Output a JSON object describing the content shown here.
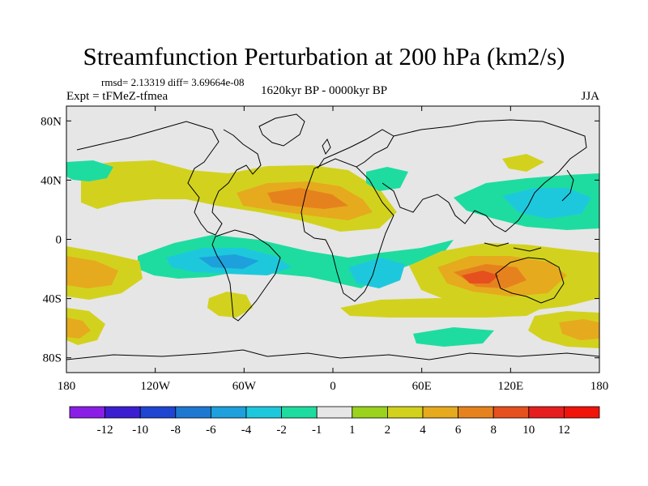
{
  "title": "Streamfunction Perturbation at 200 hPa (km2/s)",
  "stats": "rmsd= 2.13319 diff= 3.69664e-08",
  "expt": "Expt = tFMeZ-tfmea",
  "period": "1620kyr BP - 0000kyr BP",
  "season": "JJA",
  "chart_data": {
    "type": "heatmap",
    "title": "Streamfunction Perturbation at 200 hPa (km2/s)",
    "xlabel": "",
    "ylabel": "",
    "xlim": [
      -180,
      180
    ],
    "ylim": [
      -90,
      90
    ],
    "x_ticks": [
      {
        "value": -180,
        "label": "180"
      },
      {
        "value": -120,
        "label": "120W"
      },
      {
        "value": -60,
        "label": "60W"
      },
      {
        "value": 0,
        "label": "0"
      },
      {
        "value": 60,
        "label": "60E"
      },
      {
        "value": 120,
        "label": "120E"
      },
      {
        "value": 180,
        "label": "180"
      }
    ],
    "y_ticks": [
      {
        "value": 80,
        "label": "80N"
      },
      {
        "value": 40,
        "label": "40N"
      },
      {
        "value": 0,
        "label": "0"
      },
      {
        "value": -40,
        "label": "40S"
      },
      {
        "value": -80,
        "label": "80S"
      }
    ],
    "contour_levels": [
      "-12",
      "-10",
      "-8",
      "-6",
      "-4",
      "-2",
      "-1",
      "1",
      "2",
      "4",
      "6",
      "8",
      "10",
      "12"
    ],
    "colorbar_colors": [
      "#8a1ee6",
      "#3c1ed2",
      "#1e46d2",
      "#1e78d2",
      "#1ea0dc",
      "#1ec8dc",
      "#1edca0",
      "#e6e6e6",
      "#9ad21e",
      "#d2d21e",
      "#e6aa1e",
      "#e6821e",
      "#e6501e",
      "#e61e1e",
      "#f0140a"
    ],
    "features": [
      {
        "lon": 95,
        "lat": -25,
        "value": 7.5,
        "region": "Indian Ocean"
      },
      {
        "lon": -35,
        "lat": 30,
        "value": 6,
        "region": "North Atlantic"
      },
      {
        "lon": -75,
        "lat": -20,
        "value": -4.5,
        "region": "South Pacific / South America"
      },
      {
        "lon": 150,
        "lat": 30,
        "value": -4,
        "region": "Northwest Pacific"
      },
      {
        "lon": -170,
        "lat": -25,
        "value": 4,
        "region": "South Pacific dateline"
      },
      {
        "lon": 165,
        "lat": -60,
        "value": 5,
        "region": "Southern Ocean"
      },
      {
        "lon": 30,
        "lat": -30,
        "value": -3,
        "region": "South Africa"
      },
      {
        "lon": -170,
        "lat": 45,
        "value": -3,
        "region": "North Pacific"
      },
      {
        "lon": 50,
        "lat": 45,
        "value": -2,
        "region": "Caspian"
      },
      {
        "lon": 40,
        "lat": -55,
        "value": 2,
        "region": "Southern Ocean south of Africa"
      }
    ]
  }
}
